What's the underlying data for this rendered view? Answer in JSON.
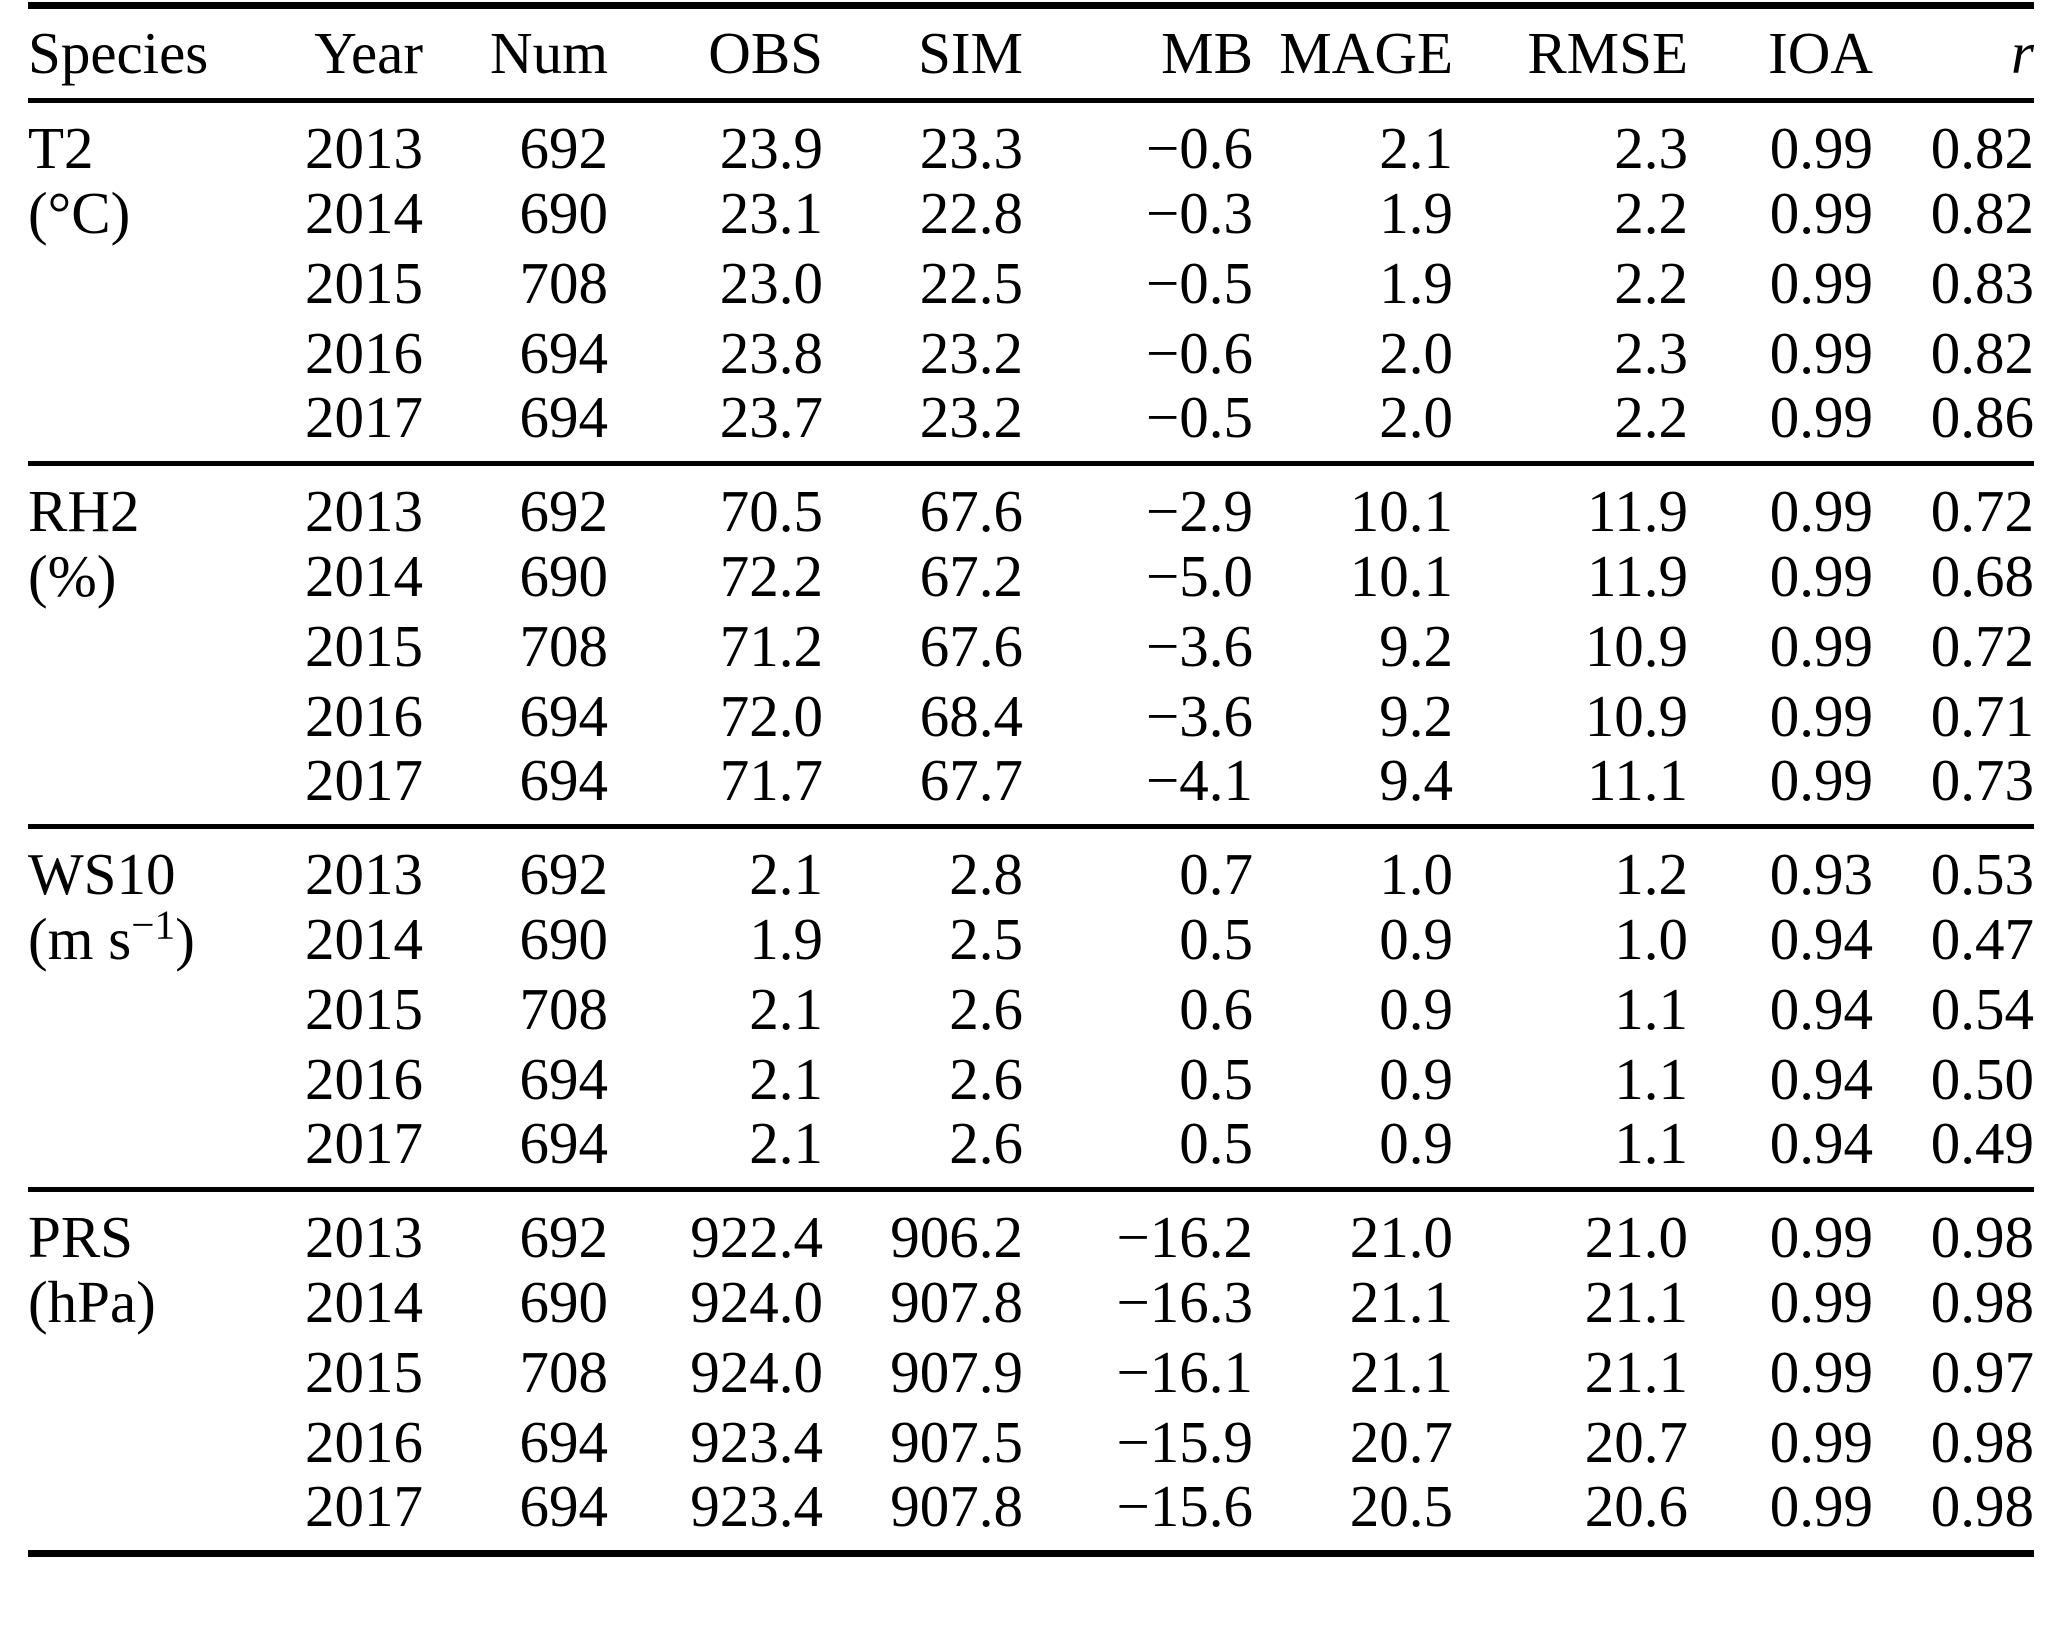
{
  "colors": {
    "background": "#ffffff",
    "text": "#000000",
    "rule": "#000000"
  },
  "table": {
    "columns": [
      {
        "key": "species",
        "label": "Species",
        "align": "left"
      },
      {
        "key": "year",
        "label": "Year",
        "align": "right"
      },
      {
        "key": "num",
        "label": "Num",
        "align": "right"
      },
      {
        "key": "obs",
        "label": "OBS",
        "align": "right"
      },
      {
        "key": "sim",
        "label": "SIM",
        "align": "right"
      },
      {
        "key": "mb",
        "label": "MB",
        "align": "right"
      },
      {
        "key": "mage",
        "label": "MAGE",
        "align": "right"
      },
      {
        "key": "rmse",
        "label": "RMSE",
        "align": "right"
      },
      {
        "key": "ioa",
        "label": "IOA",
        "align": "right"
      },
      {
        "key": "r",
        "label": "r",
        "align": "right",
        "italic": true
      }
    ],
    "sections": [
      {
        "species": "T2",
        "unit_prefix": "(°C)",
        "unit_sup": "",
        "unit_suffix": "",
        "rows": [
          {
            "year": "2013",
            "num": "692",
            "obs": "23.9",
            "sim": "23.3",
            "mb": "−0.6",
            "mage": "2.1",
            "rmse": "2.3",
            "ioa": "0.99",
            "r": "0.82"
          },
          {
            "year": "2014",
            "num": "690",
            "obs": "23.1",
            "sim": "22.8",
            "mb": "−0.3",
            "mage": "1.9",
            "rmse": "2.2",
            "ioa": "0.99",
            "r": "0.82"
          },
          {
            "year": "2015",
            "num": "708",
            "obs": "23.0",
            "sim": "22.5",
            "mb": "−0.5",
            "mage": "1.9",
            "rmse": "2.2",
            "ioa": "0.99",
            "r": "0.83"
          },
          {
            "year": "2016",
            "num": "694",
            "obs": "23.8",
            "sim": "23.2",
            "mb": "−0.6",
            "mage": "2.0",
            "rmse": "2.3",
            "ioa": "0.99",
            "r": "0.82"
          },
          {
            "year": "2017",
            "num": "694",
            "obs": "23.7",
            "sim": "23.2",
            "mb": "−0.5",
            "mage": "2.0",
            "rmse": "2.2",
            "ioa": "0.99",
            "r": "0.86"
          }
        ]
      },
      {
        "species": "RH2",
        "unit_prefix": "(%)",
        "unit_sup": "",
        "unit_suffix": "",
        "rows": [
          {
            "year": "2013",
            "num": "692",
            "obs": "70.5",
            "sim": "67.6",
            "mb": "−2.9",
            "mage": "10.1",
            "rmse": "11.9",
            "ioa": "0.99",
            "r": "0.72"
          },
          {
            "year": "2014",
            "num": "690",
            "obs": "72.2",
            "sim": "67.2",
            "mb": "−5.0",
            "mage": "10.1",
            "rmse": "11.9",
            "ioa": "0.99",
            "r": "0.68"
          },
          {
            "year": "2015",
            "num": "708",
            "obs": "71.2",
            "sim": "67.6",
            "mb": "−3.6",
            "mage": "9.2",
            "rmse": "10.9",
            "ioa": "0.99",
            "r": "0.72"
          },
          {
            "year": "2016",
            "num": "694",
            "obs": "72.0",
            "sim": "68.4",
            "mb": "−3.6",
            "mage": "9.2",
            "rmse": "10.9",
            "ioa": "0.99",
            "r": "0.71"
          },
          {
            "year": "2017",
            "num": "694",
            "obs": "71.7",
            "sim": "67.7",
            "mb": "−4.1",
            "mage": "9.4",
            "rmse": "11.1",
            "ioa": "0.99",
            "r": "0.73"
          }
        ]
      },
      {
        "species": "WS10",
        "unit_prefix": "(m s",
        "unit_sup": "−1",
        "unit_suffix": ")",
        "rows": [
          {
            "year": "2013",
            "num": "692",
            "obs": "2.1",
            "sim": "2.8",
            "mb": "0.7",
            "mage": "1.0",
            "rmse": "1.2",
            "ioa": "0.93",
            "r": "0.53"
          },
          {
            "year": "2014",
            "num": "690",
            "obs": "1.9",
            "sim": "2.5",
            "mb": "0.5",
            "mage": "0.9",
            "rmse": "1.0",
            "ioa": "0.94",
            "r": "0.47"
          },
          {
            "year": "2015",
            "num": "708",
            "obs": "2.1",
            "sim": "2.6",
            "mb": "0.6",
            "mage": "0.9",
            "rmse": "1.1",
            "ioa": "0.94",
            "r": "0.54"
          },
          {
            "year": "2016",
            "num": "694",
            "obs": "2.1",
            "sim": "2.6",
            "mb": "0.5",
            "mage": "0.9",
            "rmse": "1.1",
            "ioa": "0.94",
            "r": "0.50"
          },
          {
            "year": "2017",
            "num": "694",
            "obs": "2.1",
            "sim": "2.6",
            "mb": "0.5",
            "mage": "0.9",
            "rmse": "1.1",
            "ioa": "0.94",
            "r": "0.49"
          }
        ]
      },
      {
        "species": "PRS",
        "unit_prefix": "(hPa)",
        "unit_sup": "",
        "unit_suffix": "",
        "rows": [
          {
            "year": "2013",
            "num": "692",
            "obs": "922.4",
            "sim": "906.2",
            "mb": "−16.2",
            "mage": "21.0",
            "rmse": "21.0",
            "ioa": "0.99",
            "r": "0.98"
          },
          {
            "year": "2014",
            "num": "690",
            "obs": "924.0",
            "sim": "907.8",
            "mb": "−16.3",
            "mage": "21.1",
            "rmse": "21.1",
            "ioa": "0.99",
            "r": "0.98"
          },
          {
            "year": "2015",
            "num": "708",
            "obs": "924.0",
            "sim": "907.9",
            "mb": "−16.1",
            "mage": "21.1",
            "rmse": "21.1",
            "ioa": "0.99",
            "r": "0.97"
          },
          {
            "year": "2016",
            "num": "694",
            "obs": "923.4",
            "sim": "907.5",
            "mb": "−15.9",
            "mage": "20.7",
            "rmse": "20.7",
            "ioa": "0.99",
            "r": "0.98"
          },
          {
            "year": "2017",
            "num": "694",
            "obs": "923.4",
            "sim": "907.8",
            "mb": "−15.6",
            "mage": "20.5",
            "rmse": "20.6",
            "ioa": "0.99",
            "r": "0.98"
          }
        ]
      }
    ]
  }
}
